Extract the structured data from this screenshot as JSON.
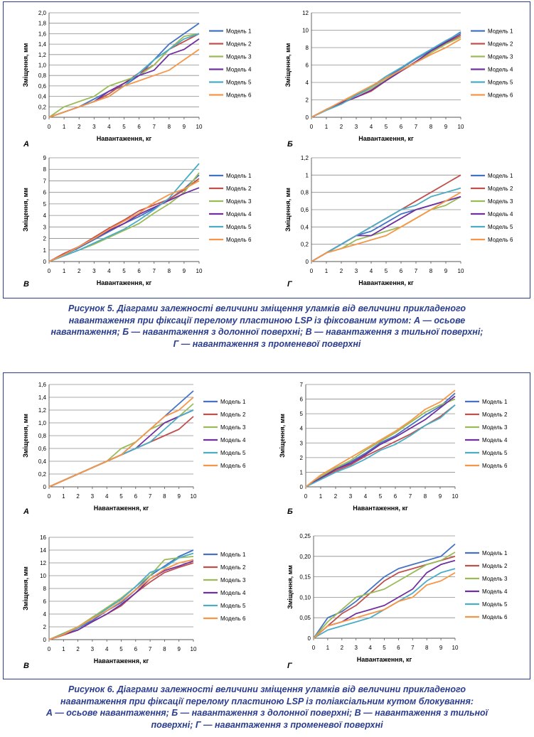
{
  "figures": [
    {
      "caption": "Рисунок 5. Діаграми залежності величини зміщення уламків від величини прикладеного навантаження при фіксації перелому пластиною LSP із фіксованим кутом: А — осьове навантаження; Б — навантаження з долонної поверхні; В — навантаження з тильної поверхні; Г — навантаження з променевої поверхні",
      "caption_lines": [
        "Рисунок 5. Діаграми залежності величини зміщення уламків від величини прикладеного",
        "навантаження при фіксації перелому пластиною LSP із фіксованим кутом: А — осьове",
        "навантаження; Б — навантаження з долонної поверхні; В — навантаження з тильної поверхні;",
        "Г — навантаження з променевої поверхні"
      ]
    },
    {
      "caption_lines": [
        "Рисунок 6. Діаграми залежності величини зміщення уламків від величини прикладеного",
        "навантаження при фіксації перелому пластиною LSP із поліаксіальним кутом блокування:",
        "А — осьове навантаження; Б — навантаження з долонної поверхні; В — навантаження з тильної",
        "поверхні; Г — навантаження з променевої поверхні"
      ]
    }
  ],
  "series_colors": [
    "#4472c4",
    "#c0504d",
    "#9bbb59",
    "#7030a0",
    "#4bacc6",
    "#f79646"
  ],
  "chart_data": [
    {
      "type": "line",
      "panel": "А",
      "figure": 5,
      "xlabel": "Навантаження, кг",
      "ylabel": "Зміщення, мм",
      "x": [
        0,
        1,
        2,
        3,
        4,
        5,
        6,
        7,
        8,
        9,
        10
      ],
      "xlim": [
        0,
        10
      ],
      "ylim": [
        0,
        2.0
      ],
      "yticks": [
        "0",
        "0,2",
        "0,4",
        "0,6",
        "0,8",
        "1,0",
        "1,2",
        "1,4",
        "1,6",
        "1,8",
        "2,0"
      ],
      "grid": true,
      "legend": "right",
      "series": [
        {
          "name": "Модель 1",
          "values": [
            0,
            0.1,
            0.2,
            0.35,
            0.5,
            0.6,
            0.8,
            1.1,
            1.4,
            1.6,
            1.8
          ]
        },
        {
          "name": "Модель 2",
          "values": [
            0,
            0.1,
            0.2,
            0.3,
            0.45,
            0.65,
            0.85,
            1.0,
            1.3,
            1.45,
            1.6
          ]
        },
        {
          "name": "Модель 3",
          "values": [
            0,
            0.2,
            0.3,
            0.4,
            0.6,
            0.7,
            0.8,
            1.0,
            1.3,
            1.55,
            1.6
          ]
        },
        {
          "name": "Модель 4",
          "values": [
            0,
            0.1,
            0.2,
            0.3,
            0.5,
            0.65,
            0.8,
            0.9,
            1.2,
            1.3,
            1.5
          ]
        },
        {
          "name": "Модель 5",
          "values": [
            0,
            0.1,
            0.2,
            0.3,
            0.4,
            0.6,
            0.85,
            1.1,
            1.3,
            1.5,
            1.6
          ]
        },
        {
          "name": "Модель 6",
          "values": [
            0,
            0.1,
            0.2,
            0.3,
            0.4,
            0.6,
            0.7,
            0.8,
            0.9,
            1.1,
            1.3
          ]
        }
      ]
    },
    {
      "type": "line",
      "panel": "Б",
      "figure": 5,
      "xlabel": "Навантаження, кг",
      "ylabel": "Зміщення, мм",
      "x": [
        0,
        1,
        2,
        3,
        4,
        5,
        6,
        7,
        8,
        9,
        10
      ],
      "xlim": [
        0,
        10
      ],
      "ylim": [
        0,
        12
      ],
      "yticks": [
        "0",
        "2",
        "4",
        "6",
        "8",
        "10",
        "12"
      ],
      "grid": true,
      "legend": "right",
      "series": [
        {
          "name": "Модель 1",
          "values": [
            0,
            0.9,
            1.7,
            2.6,
            3.5,
            4.5,
            5.6,
            6.7,
            7.7,
            8.7,
            9.8
          ]
        },
        {
          "name": "Модель 2",
          "values": [
            0,
            0.9,
            1.6,
            2.3,
            3.0,
            4.2,
            5.3,
            6.3,
            7.4,
            8.5,
            9.4
          ]
        },
        {
          "name": "Модель 3",
          "values": [
            0,
            0.9,
            1.7,
            2.5,
            3.3,
            4.3,
            5.4,
            6.4,
            7.4,
            8.4,
            9.2
          ]
        },
        {
          "name": "Модель 4",
          "values": [
            0,
            0.9,
            1.7,
            2.3,
            3.1,
            4.2,
            5.3,
            6.4,
            7.6,
            8.6,
            9.6
          ]
        },
        {
          "name": "Модель 5",
          "values": [
            0,
            0.8,
            1.5,
            2.5,
            3.5,
            4.7,
            5.7,
            6.8,
            7.8,
            8.8,
            9.7
          ]
        },
        {
          "name": "Модель 6",
          "values": [
            0,
            0.9,
            1.8,
            2.7,
            3.6,
            4.5,
            5.4,
            6.3,
            7.2,
            8.0,
            9.0
          ]
        }
      ]
    },
    {
      "type": "line",
      "panel": "В",
      "figure": 5,
      "xlabel": "Навантаження, кг",
      "ylabel": "Зміщення, мм",
      "x": [
        0,
        1,
        2,
        3,
        4,
        5,
        6,
        7,
        8,
        9,
        10
      ],
      "xlim": [
        0,
        10
      ],
      "ylim": [
        0,
        9
      ],
      "yticks": [
        "0",
        "1",
        "2",
        "3",
        "4",
        "5",
        "6",
        "7",
        "8",
        "9"
      ],
      "grid": true,
      "legend": "right",
      "series": [
        {
          "name": "Модель 1",
          "values": [
            0,
            0.6,
            1.2,
            1.9,
            2.6,
            3.3,
            3.9,
            4.6,
            5.4,
            6.3,
            7.5
          ]
        },
        {
          "name": "Модель 2",
          "values": [
            0,
            0.7,
            1.3,
            2.1,
            2.9,
            3.6,
            4.4,
            4.9,
            5.4,
            6.2,
            7.2
          ]
        },
        {
          "name": "Модель 3",
          "values": [
            0,
            0.5,
            1.0,
            1.5,
            2.1,
            2.7,
            3.3,
            4.2,
            5.0,
            6.0,
            7.7
          ]
        },
        {
          "name": "Модель 4",
          "values": [
            0,
            0.6,
            1.3,
            2.0,
            2.7,
            3.3,
            4.1,
            4.7,
            5.3,
            5.9,
            6.4
          ]
        },
        {
          "name": "Модель 5",
          "values": [
            0,
            0.5,
            1.0,
            1.6,
            2.2,
            2.8,
            3.6,
            4.5,
            5.5,
            7.0,
            8.5
          ]
        },
        {
          "name": "Модель 6",
          "values": [
            0,
            0.6,
            1.3,
            2.0,
            2.8,
            3.5,
            4.2,
            5.1,
            5.8,
            6.3,
            7.0
          ]
        }
      ]
    },
    {
      "type": "line",
      "panel": "Г",
      "figure": 5,
      "xlabel": "Навантаження, кг",
      "ylabel": "Зміщення, мм",
      "x": [
        0,
        1,
        2,
        3,
        4,
        5,
        6,
        7,
        8,
        9,
        10
      ],
      "xlim": [
        0,
        10
      ],
      "ylim": [
        0,
        1.2
      ],
      "yticks": [
        "0",
        "0,2",
        "0,4",
        "0,6",
        "0,8",
        "1",
        "1,2"
      ],
      "grid": true,
      "legend": "right",
      "series": [
        {
          "name": "Модель 1",
          "values": [
            0,
            0.1,
            0.2,
            0.3,
            0.35,
            0.45,
            0.55,
            0.6,
            0.65,
            0.7,
            0.75
          ]
        },
        {
          "name": "Модель 2",
          "values": [
            0,
            0.1,
            0.2,
            0.3,
            0.4,
            0.5,
            0.6,
            0.7,
            0.8,
            0.9,
            1.0
          ]
        },
        {
          "name": "Модель 3",
          "values": [
            0,
            0.1,
            0.15,
            0.25,
            0.3,
            0.35,
            0.4,
            0.5,
            0.6,
            0.65,
            0.75
          ]
        },
        {
          "name": "Модель 4",
          "values": [
            0,
            0.1,
            0.2,
            0.3,
            0.3,
            0.4,
            0.5,
            0.6,
            0.65,
            0.7,
            0.75
          ]
        },
        {
          "name": "Модель 5",
          "values": [
            0,
            0.1,
            0.2,
            0.3,
            0.4,
            0.5,
            0.6,
            0.65,
            0.75,
            0.8,
            0.85
          ]
        },
        {
          "name": "Модель 6",
          "values": [
            0,
            0.1,
            0.15,
            0.2,
            0.25,
            0.3,
            0.4,
            0.5,
            0.6,
            0.7,
            0.8
          ]
        }
      ]
    },
    {
      "type": "line",
      "panel": "А",
      "figure": 6,
      "xlabel": "Навантаження, кг",
      "ylabel": "Зміщення, мм",
      "x": [
        0,
        1,
        2,
        3,
        4,
        5,
        6,
        7,
        8,
        9,
        10
      ],
      "xlim": [
        0,
        10
      ],
      "ylim": [
        0,
        1.6
      ],
      "yticks": [
        "0",
        "0,2",
        "0,4",
        "0,6",
        "0,8",
        "1,0",
        "1,2",
        "1,4",
        "1,6"
      ],
      "grid": true,
      "legend": "right",
      "series": [
        {
          "name": "Модель 1",
          "values": [
            0,
            0.1,
            0.2,
            0.3,
            0.4,
            0.5,
            0.7,
            0.9,
            1.1,
            1.3,
            1.5
          ]
        },
        {
          "name": "Модель 2",
          "values": [
            0,
            0.1,
            0.2,
            0.3,
            0.4,
            0.5,
            0.6,
            0.7,
            0.8,
            0.9,
            1.1
          ]
        },
        {
          "name": "Модель 3",
          "values": [
            0,
            0.1,
            0.2,
            0.3,
            0.4,
            0.6,
            0.7,
            0.9,
            1.0,
            1.1,
            1.3
          ]
        },
        {
          "name": "Модель 4",
          "values": [
            0,
            0.1,
            0.2,
            0.3,
            0.4,
            0.5,
            0.6,
            0.8,
            1.0,
            1.1,
            1.2
          ]
        },
        {
          "name": "Модель 5",
          "values": [
            0,
            0.1,
            0.2,
            0.3,
            0.4,
            0.5,
            0.6,
            0.7,
            0.9,
            1.1,
            1.2
          ]
        },
        {
          "name": "Модель 6",
          "values": [
            0,
            0.1,
            0.2,
            0.3,
            0.4,
            0.5,
            0.7,
            0.9,
            1.1,
            1.2,
            1.4
          ]
        }
      ]
    },
    {
      "type": "line",
      "panel": "Б",
      "figure": 6,
      "xlabel": "Навантаження, кг",
      "ylabel": "Зміщення, мм",
      "x": [
        0,
        1,
        2,
        3,
        4,
        5,
        6,
        7,
        8,
        9,
        10
      ],
      "xlim": [
        0,
        10
      ],
      "ylim": [
        0,
        7
      ],
      "yticks": [
        "0",
        "1",
        "2",
        "3",
        "4",
        "5",
        "6",
        "7"
      ],
      "grid": true,
      "legend": "right",
      "series": [
        {
          "name": "Модель 1",
          "values": [
            0,
            0.6,
            1.2,
            1.7,
            2.3,
            3.0,
            3.5,
            4.2,
            4.9,
            5.5,
            6.4
          ]
        },
        {
          "name": "Модель 2",
          "values": [
            0,
            0.6,
            1.1,
            1.5,
            2.1,
            2.6,
            3.1,
            3.6,
            4.2,
            4.8,
            5.6
          ]
        },
        {
          "name": "Модель 3",
          "values": [
            0,
            0.7,
            1.3,
            1.8,
            2.5,
            3.1,
            3.7,
            4.4,
            5.1,
            5.6,
            6.0
          ]
        },
        {
          "name": "Модель 4",
          "values": [
            0,
            0.6,
            1.2,
            1.6,
            2.2,
            2.9,
            3.4,
            4.0,
            4.6,
            5.4,
            6.2
          ]
        },
        {
          "name": "Модель 5",
          "values": [
            0,
            0.5,
            1.0,
            1.4,
            1.9,
            2.5,
            2.9,
            3.5,
            4.2,
            4.7,
            5.6
          ]
        },
        {
          "name": "Модель 6",
          "values": [
            0,
            0.8,
            1.4,
            2.0,
            2.6,
            3.2,
            3.8,
            4.5,
            5.3,
            5.8,
            6.6
          ]
        }
      ]
    },
    {
      "type": "line",
      "panel": "В",
      "figure": 6,
      "xlabel": "Навантаження, кг",
      "ylabel": "Зміщення, мм",
      "x": [
        0,
        1,
        2,
        3,
        4,
        5,
        6,
        7,
        8,
        9,
        10
      ],
      "xlim": [
        0,
        10
      ],
      "ylim": [
        0,
        16
      ],
      "yticks": [
        "0",
        "2",
        "4",
        "6",
        "8",
        "10",
        "12",
        "14",
        "16"
      ],
      "grid": true,
      "legend": "right",
      "series": [
        {
          "name": "Модель 1",
          "values": [
            0,
            0.8,
            1.8,
            3.0,
            4.5,
            5.8,
            7.8,
            10.0,
            11.5,
            13.0,
            14.0
          ]
        },
        {
          "name": "Модель 2",
          "values": [
            0,
            0.7,
            1.5,
            2.8,
            4.0,
            5.3,
            7.3,
            9.0,
            10.5,
            11.3,
            12.0
          ]
        },
        {
          "name": "Модель 3",
          "values": [
            0,
            1.0,
            2.0,
            3.5,
            5.0,
            6.5,
            8.3,
            10.0,
            12.5,
            12.8,
            13.0
          ]
        },
        {
          "name": "Модель 4",
          "values": [
            0,
            0.8,
            1.5,
            2.8,
            4.0,
            5.5,
            7.3,
            9.5,
            10.8,
            11.5,
            12.3
          ]
        },
        {
          "name": "Модель 5",
          "values": [
            0,
            0.9,
            1.8,
            3.3,
            4.8,
            6.3,
            8.3,
            10.5,
            11.3,
            12.8,
            13.5
          ]
        },
        {
          "name": "Модель 6",
          "values": [
            0,
            0.8,
            2.0,
            3.3,
            4.5,
            6.0,
            7.8,
            9.5,
            11.0,
            12.0,
            12.5
          ]
        }
      ]
    },
    {
      "type": "line",
      "panel": "Г",
      "figure": 6,
      "xlabel": "Навантаження, кг",
      "ylabel": "Зміщення, мм",
      "x": [
        0,
        1,
        2,
        3,
        4,
        5,
        6,
        7,
        8,
        9,
        10
      ],
      "xlim": [
        0,
        10
      ],
      "ylim": [
        0,
        0.25
      ],
      "yticks": [
        "0",
        "0,05",
        "0,10",
        "0,15",
        "0,20",
        "0,25"
      ],
      "grid": true,
      "legend": "right",
      "series": [
        {
          "name": "Модель 1",
          "values": [
            0,
            0.05,
            0.065,
            0.09,
            0.12,
            0.15,
            0.17,
            0.18,
            0.19,
            0.2,
            0.23
          ]
        },
        {
          "name": "Модель 2",
          "values": [
            0,
            0.03,
            0.06,
            0.08,
            0.11,
            0.14,
            0.16,
            0.17,
            0.18,
            0.19,
            0.2
          ]
        },
        {
          "name": "Модель 3",
          "values": [
            0,
            0.04,
            0.07,
            0.1,
            0.11,
            0.12,
            0.14,
            0.16,
            0.18,
            0.19,
            0.21
          ]
        },
        {
          "name": "Модель 4",
          "values": [
            0,
            0.03,
            0.04,
            0.06,
            0.07,
            0.08,
            0.1,
            0.12,
            0.16,
            0.18,
            0.19
          ]
        },
        {
          "name": "Модель 5",
          "values": [
            0,
            0.02,
            0.03,
            0.04,
            0.05,
            0.07,
            0.09,
            0.11,
            0.14,
            0.16,
            0.17
          ]
        },
        {
          "name": "Модель 6",
          "values": [
            0,
            0.03,
            0.04,
            0.05,
            0.06,
            0.07,
            0.09,
            0.1,
            0.13,
            0.14,
            0.16
          ]
        }
      ]
    }
  ]
}
